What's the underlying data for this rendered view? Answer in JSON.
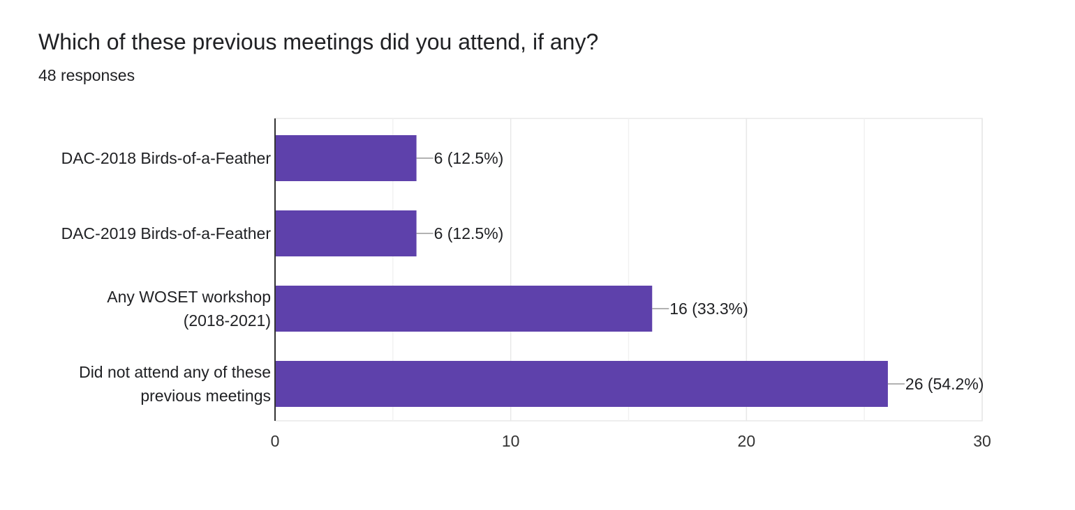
{
  "question": {
    "title": "Which of these previous meetings did you attend, if any?",
    "responses": "48 responses"
  },
  "colors": {
    "bar": "#5e41ab",
    "grid": "#e8e8e8",
    "axis": "#333333",
    "text": "#202124",
    "label": "#333333"
  },
  "chart_data": {
    "type": "bar",
    "orientation": "horizontal",
    "categories": [
      [
        "DAC-2018 Birds-of-a-Feather"
      ],
      [
        "DAC-2019 Birds-of-a-Feather"
      ],
      [
        "Any WOSET workshop",
        "(2018-2021)"
      ],
      [
        "Did not attend any of these",
        "previous meetings"
      ]
    ],
    "values": [
      6,
      6,
      16,
      26
    ],
    "data_labels": [
      "6 (12.5%)",
      "6 (12.5%)",
      "16 (33.3%)",
      "26 (54.2%)"
    ],
    "xlim": [
      0,
      30
    ],
    "xticks": [
      0,
      10,
      20,
      30
    ],
    "minor_grid": [
      5,
      15,
      25
    ],
    "grid": true,
    "legend": "none"
  }
}
